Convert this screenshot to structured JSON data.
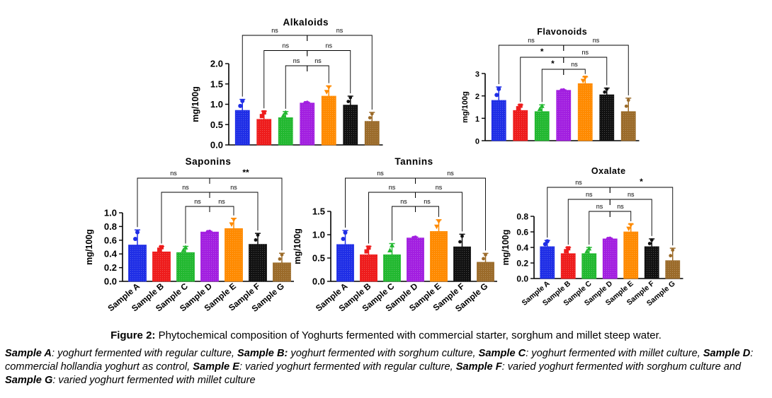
{
  "figure": {
    "caption_label": "Figure 2:",
    "caption_text": "Phytochemical composition of Yoghurts fermented with commercial starter, sorghum and millet steep water.",
    "legend": [
      {
        "name": "Sample A",
        "desc": ": yoghurt fermented with regular culture, "
      },
      {
        "name": "Sample B:",
        "desc": " yoghurt fermented with sorghum culture, "
      },
      {
        "name": "Sample C",
        "desc": ": yoghurt fermented with millet culture, "
      },
      {
        "name": "Sample D",
        "desc": ": commercial hollandia yoghurt as control, "
      },
      {
        "name": "Sample E",
        "desc": ": varied yoghurt fermented with regular culture, "
      },
      {
        "name": "Sample F",
        "desc": ": varied yoghurt fermented with sorghum culture and "
      },
      {
        "name": "Sample G",
        "desc": ": varied yoghurt fermented with millet culture"
      }
    ]
  },
  "colors": {
    "A": "#1f2ee6",
    "B": "#ee1c1c",
    "C": "#22b830",
    "D": "#a21fe0",
    "E": "#ff8a00",
    "F": "#111111",
    "G": "#9b6b2a"
  },
  "chart_data": [
    {
      "type": "bar",
      "title": "Alkaloids",
      "ylabel": "mg/100g",
      "categories": [
        "Sample A",
        "Sample B",
        "Sample C",
        "Sample D",
        "Sample E",
        "Sample F",
        "Sample G"
      ],
      "values": [
        0.85,
        0.63,
        0.67,
        1.03,
        1.2,
        0.98,
        0.58
      ],
      "error": [
        0.27,
        0.2,
        0.15,
        0.02,
        0.25,
        0.22,
        0.22
      ],
      "ylim": [
        0,
        2.0
      ],
      "yticks": [
        "0.0",
        "0.5",
        "1.0",
        "1.5",
        "2.0"
      ],
      "ytick_values": [
        0,
        0.5,
        1.0,
        1.5,
        2.0
      ],
      "show_xlabels": false,
      "comparisons": [
        {
          "from": 0,
          "label": "ns"
        },
        {
          "from": 6,
          "label": "ns"
        },
        {
          "from": 1,
          "label": "ns"
        },
        {
          "from": 5,
          "label": "ns"
        },
        {
          "from": 2,
          "label": "ns"
        },
        {
          "from": 4,
          "label": "ns"
        }
      ]
    },
    {
      "type": "bar",
      "title": "Flavonoids",
      "ylabel": "mg/100g",
      "categories": [
        "Sample A",
        "Sample B",
        "Sample C",
        "Sample D",
        "Sample E",
        "Sample F",
        "Sample G"
      ],
      "values": [
        1.8,
        1.35,
        1.3,
        2.25,
        2.55,
        2.05,
        1.3
      ],
      "error": [
        0.6,
        0.25,
        0.3,
        0.02,
        0.3,
        0.3,
        0.6
      ],
      "ylim": [
        0,
        3.0
      ],
      "yticks": [
        "0",
        "1",
        "2",
        "3"
      ],
      "ytick_values": [
        0,
        1,
        2,
        3
      ],
      "show_xlabels": false,
      "comparisons": [
        {
          "from": 0,
          "label": "ns"
        },
        {
          "from": 6,
          "label": "ns"
        },
        {
          "from": 1,
          "label": "*"
        },
        {
          "from": 5,
          "label": "ns"
        },
        {
          "from": 2,
          "label": "*"
        },
        {
          "from": 4,
          "label": "ns"
        }
      ]
    },
    {
      "type": "bar",
      "title": "Saponins",
      "ylabel": "mg/100g",
      "categories": [
        "Sample A",
        "Sample B",
        "Sample C",
        "Sample D",
        "Sample E",
        "Sample F",
        "Sample G"
      ],
      "values": [
        0.53,
        0.43,
        0.42,
        0.72,
        0.77,
        0.54,
        0.27
      ],
      "error": [
        0.22,
        0.08,
        0.09,
        0.01,
        0.15,
        0.16,
        0.14
      ],
      "ylim": [
        0,
        1.0
      ],
      "yticks": [
        "0.0",
        "0.2",
        "0.4",
        "0.6",
        "0.8",
        "1.0"
      ],
      "ytick_values": [
        0,
        0.2,
        0.4,
        0.6,
        0.8,
        1.0
      ],
      "show_xlabels": true,
      "comparisons": [
        {
          "from": 0,
          "label": "ns"
        },
        {
          "from": 6,
          "label": "**"
        },
        {
          "from": 1,
          "label": "ns"
        },
        {
          "from": 5,
          "label": "ns"
        },
        {
          "from": 2,
          "label": "ns"
        },
        {
          "from": 4,
          "label": "ns"
        }
      ]
    },
    {
      "type": "bar",
      "title": "Tannins",
      "ylabel": "mg/100g",
      "categories": [
        "Sample A",
        "Sample B",
        "Sample C",
        "Sample D",
        "Sample E",
        "Sample F",
        "Sample G"
      ],
      "values": [
        0.79,
        0.57,
        0.57,
        0.93,
        1.07,
        0.74,
        0.41
      ],
      "error": [
        0.3,
        0.18,
        0.24,
        0.02,
        0.25,
        0.27,
        0.19
      ],
      "ylim": [
        0,
        1.5
      ],
      "yticks": [
        "0.0",
        "0.5",
        "1.0",
        "1.5"
      ],
      "ytick_values": [
        0,
        0.5,
        1.0,
        1.5
      ],
      "show_xlabels": true,
      "comparisons": [
        {
          "from": 0,
          "label": "ns"
        },
        {
          "from": 6,
          "label": "ns"
        },
        {
          "from": 1,
          "label": "ns"
        },
        {
          "from": 5,
          "label": "ns"
        },
        {
          "from": 2,
          "label": "ns"
        },
        {
          "from": 4,
          "label": "ns"
        }
      ]
    },
    {
      "type": "bar",
      "title": "Oxalate",
      "ylabel": "mg/100g",
      "categories": [
        "Sample A",
        "Sample B",
        "Sample C",
        "Sample D",
        "Sample E",
        "Sample F",
        "Sample G"
      ],
      "values": [
        0.41,
        0.32,
        0.32,
        0.51,
        0.6,
        0.41,
        0.23
      ],
      "error": [
        0.08,
        0.08,
        0.08,
        0.01,
        0.1,
        0.1,
        0.16
      ],
      "ylim": [
        0,
        0.8
      ],
      "yticks": [
        "0.0",
        "0.2",
        "0.4",
        "0.6",
        "0.8"
      ],
      "ytick_values": [
        0,
        0.2,
        0.4,
        0.6,
        0.8
      ],
      "show_xlabels": true,
      "comparisons": [
        {
          "from": 0,
          "label": "ns"
        },
        {
          "from": 6,
          "label": "*"
        },
        {
          "from": 1,
          "label": "ns"
        },
        {
          "from": 5,
          "label": "ns"
        },
        {
          "from": 2,
          "label": "ns"
        },
        {
          "from": 4,
          "label": "ns"
        }
      ]
    }
  ]
}
